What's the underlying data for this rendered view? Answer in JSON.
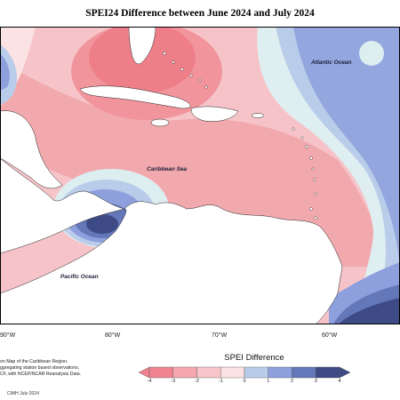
{
  "title": "SPEI24 Difference between June 2024 and July 2024",
  "labels": {
    "atlantic": "Atlantic Ocean",
    "caribbean": "Caribbean Sea",
    "pacific": "Pacific Ocean"
  },
  "longitudes": [
    "90°W",
    "80°W",
    "70°W",
    "60°W"
  ],
  "notes": [
    "on Map of the Caribbean Region.",
    "ggregating station based observations,",
    "CF, with NCEP/NCAR Reanalysis Data."
  ],
  "credit": "CIMH July-2024",
  "legend": {
    "title": "SPEI Difference",
    "ticks": [
      "-4",
      "-3",
      "-2",
      "-1",
      "0",
      "1",
      "2",
      "3",
      "4"
    ],
    "colors": [
      "#f0838f",
      "#f4a7ae",
      "#f8c6ca",
      "#fce2e3",
      "#ddeef0",
      "#b9ccea",
      "#8d9fdc",
      "#6477b8",
      "#3e4a85"
    ]
  }
}
